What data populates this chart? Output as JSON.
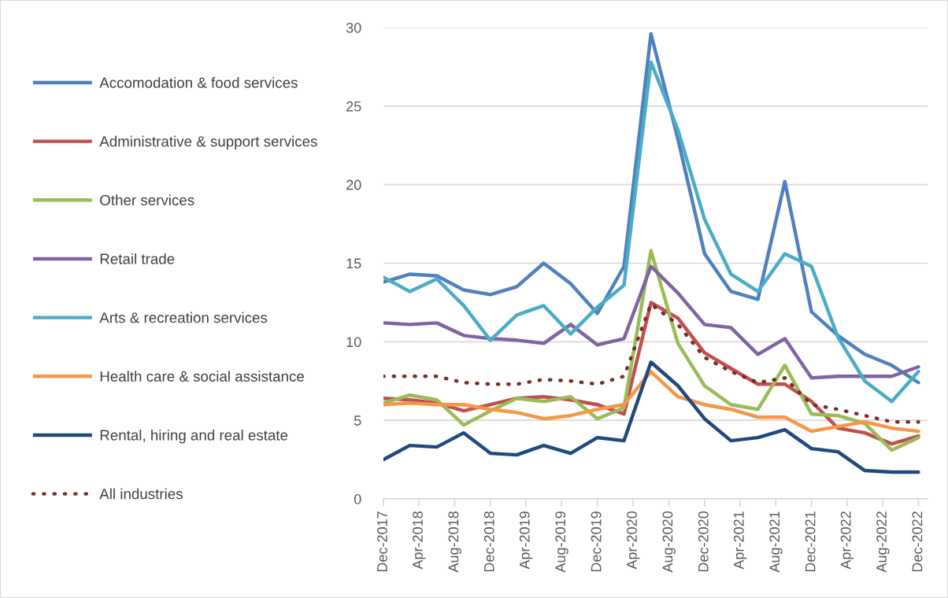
{
  "chart_data": {
    "type": "line",
    "x": [
      "2017-12",
      "2018-03",
      "2018-06",
      "2018-09",
      "2018-12",
      "2019-03",
      "2019-06",
      "2019-09",
      "2019-12",
      "2020-03",
      "2020-06",
      "2020-09",
      "2020-12",
      "2021-03",
      "2021-06",
      "2021-09",
      "2021-12",
      "2022-03",
      "2022-06",
      "2022-09",
      "2022-12"
    ],
    "xlim": [
      "2017-12",
      "2023-01"
    ],
    "xticks": [
      {
        "value": "2017-12",
        "label": "Dec-2017"
      },
      {
        "value": "2018-04",
        "label": "Apr-2018"
      },
      {
        "value": "2018-08",
        "label": "Aug-2018"
      },
      {
        "value": "2018-12",
        "label": "Dec-2018"
      },
      {
        "value": "2019-04",
        "label": "Apr-2019"
      },
      {
        "value": "2019-08",
        "label": "Aug-2019"
      },
      {
        "value": "2019-12",
        "label": "Dec-2019"
      },
      {
        "value": "2020-04",
        "label": "Apr-2020"
      },
      {
        "value": "2020-08",
        "label": "Aug-2020"
      },
      {
        "value": "2020-12",
        "label": "Dec-2020"
      },
      {
        "value": "2021-04",
        "label": "Apr-2021"
      },
      {
        "value": "2021-08",
        "label": "Aug-2021"
      },
      {
        "value": "2021-12",
        "label": "Dec-2021"
      },
      {
        "value": "2022-04",
        "label": "Apr-2022"
      },
      {
        "value": "2022-08",
        "label": "Aug-2022"
      },
      {
        "value": "2022-12",
        "label": "Dec-2022"
      }
    ],
    "ylim": [
      0,
      30
    ],
    "yticks": [
      0,
      5,
      10,
      15,
      20,
      25,
      30
    ],
    "grid": "y",
    "legend": "left",
    "marker": "none",
    "line_style": "solid",
    "series": [
      {
        "name": "Accomodation & food services",
        "color": "#4f81bd",
        "values": [
          13.8,
          14.3,
          14.2,
          13.3,
          13.0,
          13.5,
          15.0,
          13.7,
          11.8,
          14.8,
          29.6,
          22.9,
          15.6,
          13.2,
          12.7,
          20.2,
          11.9,
          10.4,
          9.2,
          8.5,
          7.4
        ]
      },
      {
        "name": "Administrative & support services",
        "color": "#c0504d",
        "values": [
          6.4,
          6.3,
          6.1,
          5.6,
          6.0,
          6.4,
          6.5,
          6.3,
          6.0,
          5.4,
          12.5,
          11.5,
          9.3,
          8.3,
          7.3,
          7.3,
          6.2,
          4.5,
          4.2,
          3.5,
          4.0
        ]
      },
      {
        "name": "Other services",
        "color": "#9bbb59",
        "values": [
          6.1,
          6.6,
          6.3,
          4.7,
          5.6,
          6.4,
          6.2,
          6.5,
          5.1,
          5.8,
          15.8,
          9.9,
          7.2,
          6.0,
          5.7,
          8.5,
          5.4,
          5.3,
          4.8,
          3.1,
          3.9
        ]
      },
      {
        "name": "Retail trade",
        "color": "#8064a2",
        "values": [
          11.2,
          11.1,
          11.2,
          10.4,
          10.2,
          10.1,
          9.9,
          11.1,
          9.8,
          10.2,
          14.8,
          13.1,
          11.1,
          10.9,
          9.2,
          10.2,
          7.7,
          7.8,
          7.8,
          7.8,
          8.4
        ]
      },
      {
        "name": "Arts & recreation services",
        "color": "#4bacc6",
        "values": [
          14.1,
          13.2,
          14.0,
          12.3,
          10.1,
          11.7,
          12.3,
          10.5,
          12.2,
          13.6,
          27.8,
          23.5,
          17.8,
          14.3,
          13.2,
          15.6,
          14.8,
          10.3,
          7.5,
          6.2,
          8.1
        ]
      },
      {
        "name": "Health care & social assistance",
        "color": "#f79646",
        "values": [
          6.0,
          6.1,
          6.0,
          6.0,
          5.7,
          5.5,
          5.1,
          5.3,
          5.7,
          6.0,
          8.1,
          6.5,
          6.0,
          5.7,
          5.2,
          5.2,
          4.3,
          4.6,
          4.9,
          4.5,
          4.3
        ]
      },
      {
        "name": "Rental, hiring and real estate",
        "color": "#1f497d",
        "values": [
          2.5,
          3.4,
          3.3,
          4.2,
          2.9,
          2.8,
          3.4,
          2.9,
          3.9,
          3.7,
          8.7,
          7.2,
          5.1,
          3.7,
          3.9,
          4.4,
          3.2,
          3.0,
          1.8,
          1.7,
          1.7
        ]
      },
      {
        "name": "All industries",
        "color": "#7b2b2b",
        "line_style": "dotted",
        "values": [
          7.8,
          7.8,
          7.8,
          7.4,
          7.3,
          7.3,
          7.6,
          7.5,
          7.3,
          7.8,
          12.4,
          11.1,
          9.0,
          8.1,
          7.4,
          7.7,
          6.0,
          5.7,
          5.3,
          4.9,
          4.9
        ]
      }
    ]
  }
}
